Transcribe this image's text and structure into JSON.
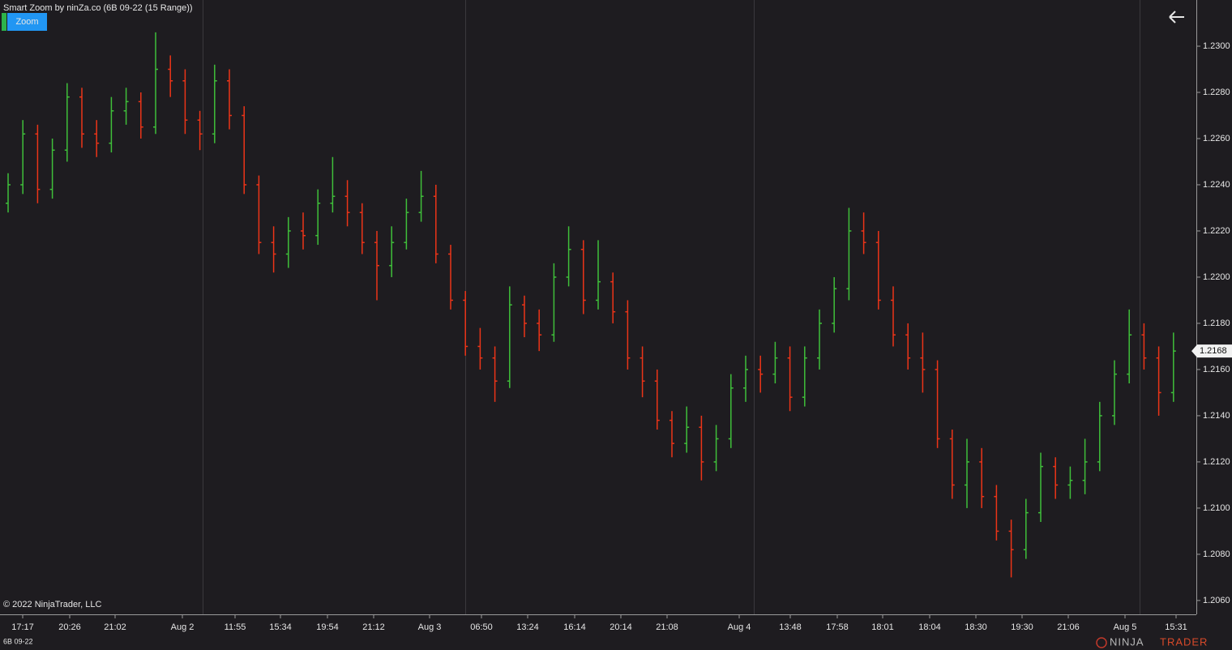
{
  "chart_data": {
    "type": "ohlc",
    "title": "Smart Zoom by ninZa.co (6B 09-22 (15 Range))",
    "button": "Zoom",
    "copyright": "© 2022 NinjaTrader, LLC",
    "instrument": "6B 09-22",
    "logo": [
      "NINJA",
      "TRADER"
    ],
    "up_color": "#3fbf3a",
    "down_color": "#ec3418",
    "ylim": [
      1.2054,
      1.232
    ],
    "yticks": [
      {
        "value": 1.206,
        "label": "1.2060"
      },
      {
        "value": 1.208,
        "label": "1.2080"
      },
      {
        "value": 1.21,
        "label": "1.2100"
      },
      {
        "value": 1.212,
        "label": "1.2120"
      },
      {
        "value": 1.214,
        "label": "1.2140"
      },
      {
        "value": 1.216,
        "label": "1.2160"
      },
      {
        "value": 1.218,
        "label": "1.2180"
      },
      {
        "value": 1.22,
        "label": "1.2200"
      },
      {
        "value": 1.222,
        "label": "1.2220"
      },
      {
        "value": 1.224,
        "label": "1.2240"
      },
      {
        "value": 1.226,
        "label": "1.2260"
      },
      {
        "value": 1.228,
        "label": "1.2280"
      },
      {
        "value": 1.23,
        "label": "1.2300"
      }
    ],
    "last_price": {
      "value": 1.2168,
      "label": "1.2168"
    },
    "xlabels": [
      "17:17",
      "20:26",
      "21:02",
      "Aug 2",
      "11:55",
      "15:34",
      "19:54",
      "21:12",
      "Aug 3",
      "06:50",
      "13:24",
      "16:14",
      "20:14",
      "21:08",
      "Aug 4",
      "13:48",
      "17:58",
      "18:01",
      "18:04",
      "18:30",
      "19:30",
      "21:06",
      "Aug 5",
      "15:31"
    ],
    "bars": [
      [
        1.2232,
        1.2245,
        1.2228,
        1.224
      ],
      [
        1.224,
        1.2268,
        1.2236,
        1.2262
      ],
      [
        1.2262,
        1.2266,
        1.2232,
        1.2238
      ],
      [
        1.2238,
        1.226,
        1.2234,
        1.2255
      ],
      [
        1.2255,
        1.2284,
        1.225,
        1.2278
      ],
      [
        1.2278,
        1.2282,
        1.2256,
        1.2262
      ],
      [
        1.2262,
        1.2268,
        1.2252,
        1.2258
      ],
      [
        1.2258,
        1.2278,
        1.2254,
        1.2272
      ],
      [
        1.2272,
        1.2282,
        1.2266,
        1.2276
      ],
      [
        1.2276,
        1.228,
        1.226,
        1.2265
      ],
      [
        1.2265,
        1.2306,
        1.2262,
        1.229
      ],
      [
        1.229,
        1.2296,
        1.2278,
        1.2285
      ],
      [
        1.2285,
        1.229,
        1.2262,
        1.2268
      ],
      [
        1.2268,
        1.2272,
        1.2255,
        1.2262
      ],
      [
        1.2262,
        1.2292,
        1.2258,
        1.2285
      ],
      [
        1.2285,
        1.229,
        1.2264,
        1.227
      ],
      [
        1.227,
        1.2274,
        1.2236,
        1.224
      ],
      [
        1.224,
        1.2244,
        1.221,
        1.2215
      ],
      [
        1.2215,
        1.2222,
        1.2202,
        1.221
      ],
      [
        1.221,
        1.2226,
        1.2204,
        1.222
      ],
      [
        1.222,
        1.2228,
        1.2212,
        1.2218
      ],
      [
        1.2218,
        1.2238,
        1.2214,
        1.2232
      ],
      [
        1.2232,
        1.2252,
        1.2228,
        1.2235
      ],
      [
        1.2235,
        1.2242,
        1.2222,
        1.2228
      ],
      [
        1.2228,
        1.2232,
        1.221,
        1.2215
      ],
      [
        1.2215,
        1.222,
        1.219,
        1.2205
      ],
      [
        1.2205,
        1.2222,
        1.22,
        1.2215
      ],
      [
        1.2215,
        1.2234,
        1.2212,
        1.2228
      ],
      [
        1.2228,
        1.2246,
        1.2224,
        1.2235
      ],
      [
        1.2235,
        1.224,
        1.2206,
        1.221
      ],
      [
        1.221,
        1.2214,
        1.2186,
        1.219
      ],
      [
        1.219,
        1.2194,
        1.2166,
        1.217
      ],
      [
        1.217,
        1.2178,
        1.216,
        1.2165
      ],
      [
        1.2165,
        1.217,
        1.2146,
        1.2155
      ],
      [
        1.2155,
        1.2196,
        1.2152,
        1.2188
      ],
      [
        1.2188,
        1.2192,
        1.2174,
        1.218
      ],
      [
        1.218,
        1.2186,
        1.2168,
        1.2175
      ],
      [
        1.2175,
        1.2206,
        1.2172,
        1.22
      ],
      [
        1.22,
        1.2222,
        1.2196,
        1.2212
      ],
      [
        1.2212,
        1.2216,
        1.2184,
        1.219
      ],
      [
        1.219,
        1.2216,
        1.2186,
        1.2198
      ],
      [
        1.2198,
        1.2202,
        1.218,
        1.2185
      ],
      [
        1.2185,
        1.219,
        1.216,
        1.2165
      ],
      [
        1.2165,
        1.217,
        1.2148,
        1.2155
      ],
      [
        1.2155,
        1.216,
        1.2134,
        1.2138
      ],
      [
        1.2138,
        1.2142,
        1.2122,
        1.2128
      ],
      [
        1.2128,
        1.2144,
        1.2124,
        1.2135
      ],
      [
        1.2135,
        1.214,
        1.2112,
        1.212
      ],
      [
        1.212,
        1.2136,
        1.2116,
        1.213
      ],
      [
        1.213,
        1.2158,
        1.2126,
        1.2152
      ],
      [
        1.2152,
        1.2166,
        1.2146,
        1.216
      ],
      [
        1.216,
        1.2166,
        1.215,
        1.2158
      ],
      [
        1.2158,
        1.2172,
        1.2154,
        1.2165
      ],
      [
        1.2165,
        1.217,
        1.2142,
        1.2148
      ],
      [
        1.2148,
        1.217,
        1.2144,
        1.2165
      ],
      [
        1.2165,
        1.2186,
        1.216,
        1.218
      ],
      [
        1.218,
        1.22,
        1.2176,
        1.2195
      ],
      [
        1.2195,
        1.223,
        1.219,
        1.222
      ],
      [
        1.222,
        1.2228,
        1.221,
        1.2215
      ],
      [
        1.2215,
        1.222,
        1.2186,
        1.219
      ],
      [
        1.219,
        1.2196,
        1.217,
        1.2175
      ],
      [
        1.2175,
        1.218,
        1.216,
        1.2165
      ],
      [
        1.2165,
        1.2176,
        1.215,
        1.216
      ],
      [
        1.216,
        1.2164,
        1.2126,
        1.213
      ],
      [
        1.213,
        1.2134,
        1.2104,
        1.211
      ],
      [
        1.211,
        1.213,
        1.21,
        1.212
      ],
      [
        1.212,
        1.2126,
        1.21,
        1.2105
      ],
      [
        1.2105,
        1.211,
        1.2086,
        1.209
      ],
      [
        1.209,
        1.2095,
        1.207,
        1.2082
      ],
      [
        1.2082,
        1.2104,
        1.2078,
        1.2098
      ],
      [
        1.2098,
        1.2124,
        1.2094,
        1.2118
      ],
      [
        1.2118,
        1.2122,
        1.2104,
        1.211
      ],
      [
        1.211,
        1.2118,
        1.2104,
        1.2112
      ],
      [
        1.2112,
        1.213,
        1.2106,
        1.212
      ],
      [
        1.212,
        1.2146,
        1.2116,
        1.214
      ],
      [
        1.214,
        1.2164,
        1.2136,
        1.2158
      ],
      [
        1.2158,
        1.2186,
        1.2154,
        1.2175
      ],
      [
        1.2175,
        1.218,
        1.216,
        1.2165
      ],
      [
        1.2165,
        1.217,
        1.214,
        1.215
      ],
      [
        1.215,
        1.2176,
        1.2146,
        1.2168
      ]
    ]
  }
}
